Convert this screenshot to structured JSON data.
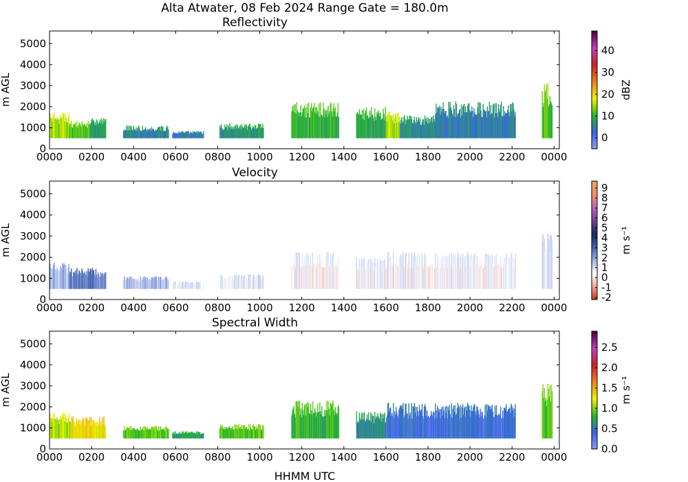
{
  "figure": {
    "suptitle": "Alta Atwater, 08 Feb 2024 Range Gate = 180.0m",
    "xlabel": "HHMM UTC"
  },
  "chart_data": [
    {
      "type": "heatmap",
      "title": "Reflectivity",
      "ylabel": "m AGL",
      "xlabel": "",
      "xlim": [
        0,
        1455
      ],
      "ylim": [
        0,
        5600
      ],
      "x_ticks": [
        0,
        120,
        240,
        360,
        480,
        600,
        720,
        840,
        960,
        1080,
        1200,
        1320,
        1440
      ],
      "x_tick_labels": [
        "0000",
        "0200",
        "0400",
        "0600",
        "0800",
        "1000",
        "1200",
        "1400",
        "1600",
        "1800",
        "2000",
        "2200",
        "0000"
      ],
      "y_ticks": [
        0,
        1000,
        2000,
        3000,
        4000,
        5000
      ],
      "y_tick_labels": [
        "0",
        "1000",
        "2000",
        "3000",
        "4000",
        "5000"
      ],
      "colorbar": {
        "label": "dBZ",
        "range": [
          -5,
          49
        ],
        "ticks": [
          0,
          10,
          20,
          30,
          40
        ],
        "tick_labels": [
          "0",
          "10",
          "20",
          "30",
          "40"
        ],
        "colors": [
          "#8ca0ee",
          "#3a62e8",
          "#22bb22",
          "#f4f000",
          "#f08020",
          "#d02020",
          "#c040c0",
          "#500040"
        ]
      },
      "echoes": [
        {
          "t0": 0,
          "t1": 55,
          "top": 1750,
          "value": 15
        },
        {
          "t0": 55,
          "t1": 115,
          "top": 1350,
          "value": 12
        },
        {
          "t0": 115,
          "t1": 160,
          "top": 1550,
          "value": 8
        },
        {
          "t0": 210,
          "t1": 340,
          "top": 1100,
          "value": 6
        },
        {
          "t0": 350,
          "t1": 440,
          "top": 850,
          "value": 4
        },
        {
          "t0": 485,
          "t1": 610,
          "top": 1200,
          "value": 7
        },
        {
          "t0": 690,
          "t1": 825,
          "top": 2250,
          "value": 10
        },
        {
          "t0": 875,
          "t1": 960,
          "top": 2000,
          "value": 9
        },
        {
          "t0": 960,
          "t1": 1000,
          "top": 1800,
          "value": 15
        },
        {
          "t0": 1000,
          "t1": 1100,
          "top": 1600,
          "value": 6
        },
        {
          "t0": 1100,
          "t1": 1330,
          "top": 2250,
          "value": 5
        },
        {
          "t0": 1405,
          "t1": 1435,
          "top": 3200,
          "value": 12
        }
      ]
    },
    {
      "type": "heatmap",
      "title": "Velocity",
      "ylabel": "m AGL",
      "xlabel": "",
      "xlim": [
        0,
        1455
      ],
      "ylim": [
        0,
        5600
      ],
      "x_ticks": [
        0,
        120,
        240,
        360,
        480,
        600,
        720,
        840,
        960,
        1080,
        1200,
        1320,
        1440
      ],
      "x_tick_labels": [
        "0000",
        "0200",
        "0400",
        "0600",
        "0800",
        "1000",
        "1200",
        "1400",
        "1600",
        "1800",
        "2000",
        "2200",
        "0000"
      ],
      "y_ticks": [
        0,
        1000,
        2000,
        3000,
        4000,
        5000
      ],
      "y_tick_labels": [
        "0",
        "1000",
        "2000",
        "3000",
        "4000",
        "5000"
      ],
      "colorbar": {
        "label": "m s⁻¹",
        "range": [
          -2.2,
          9.7
        ],
        "ticks": [
          -2,
          -1,
          0,
          1,
          2,
          3,
          4,
          5,
          6,
          7,
          8,
          9
        ],
        "tick_labels": [
          "-2",
          "-1",
          "0",
          "1",
          "2",
          "3",
          "4",
          "5",
          "6",
          "7",
          "8",
          "9"
        ],
        "colors": [
          "#d03020",
          "#f0a090",
          "#ffffff",
          "#a0b4e8",
          "#4060b0",
          "#1a2a60",
          "#7040a0",
          "#c060c0",
          "#f09060",
          "#f0a060"
        ]
      },
      "echoes": [
        {
          "t0": 0,
          "t1": 55,
          "top": 1750,
          "value": 1.6
        },
        {
          "t0": 55,
          "t1": 160,
          "top": 1500,
          "value": 2.6
        },
        {
          "t0": 210,
          "t1": 340,
          "top": 1100,
          "value": 1.5
        },
        {
          "t0": 350,
          "t1": 440,
          "top": 850,
          "value": 0.8
        },
        {
          "t0": 485,
          "t1": 610,
          "top": 1200,
          "value": 0.7
        },
        {
          "t0": 690,
          "t1": 825,
          "top": 2250,
          "value": 0.4
        },
        {
          "t0": 875,
          "t1": 960,
          "top": 2000,
          "value": 0.6
        },
        {
          "t0": 960,
          "t1": 1330,
          "top": 2250,
          "value": 0.5
        },
        {
          "t0": 1405,
          "t1": 1435,
          "top": 3200,
          "value": 0.9
        }
      ]
    },
    {
      "type": "heatmap",
      "title": "Spectral Width",
      "ylabel": "m AGL",
      "xlabel": "HHMM UTC",
      "xlim": [
        0,
        1455
      ],
      "ylim": [
        0,
        5600
      ],
      "x_ticks": [
        0,
        120,
        240,
        360,
        480,
        600,
        720,
        840,
        960,
        1080,
        1200,
        1320,
        1440
      ],
      "x_tick_labels": [
        "0000",
        "0200",
        "0400",
        "0600",
        "0800",
        "1000",
        "1200",
        "1400",
        "1600",
        "1800",
        "2000",
        "2200",
        "0000"
      ],
      "y_ticks": [
        0,
        1000,
        2000,
        3000,
        4000,
        5000
      ],
      "y_tick_labels": [
        "0",
        "1000",
        "2000",
        "3000",
        "4000",
        "5000"
      ],
      "colorbar": {
        "label": "m s⁻¹",
        "range": [
          0,
          2.9
        ],
        "ticks": [
          0,
          0.5,
          1,
          1.5,
          2,
          2.5
        ],
        "tick_labels": [
          "0.0",
          "0.5",
          "1.0",
          "1.5",
          "2.0",
          "2.5"
        ],
        "colors": [
          "#8ca0ee",
          "#3a62e8",
          "#22bb22",
          "#f4f000",
          "#f08020",
          "#d02020",
          "#c040c0",
          "#500040"
        ]
      },
      "echoes": [
        {
          "t0": 0,
          "t1": 60,
          "top": 1750,
          "value": 1.1
        },
        {
          "t0": 60,
          "t1": 160,
          "top": 1550,
          "value": 1.3
        },
        {
          "t0": 210,
          "t1": 340,
          "top": 1100,
          "value": 0.9
        },
        {
          "t0": 350,
          "t1": 440,
          "top": 850,
          "value": 0.7
        },
        {
          "t0": 485,
          "t1": 610,
          "top": 1200,
          "value": 0.9
        },
        {
          "t0": 690,
          "t1": 825,
          "top": 2300,
          "value": 0.8
        },
        {
          "t0": 875,
          "t1": 960,
          "top": 1800,
          "value": 0.6
        },
        {
          "t0": 960,
          "t1": 1330,
          "top": 2200,
          "value": 0.4
        },
        {
          "t0": 1405,
          "t1": 1435,
          "top": 3200,
          "value": 0.9
        }
      ]
    }
  ]
}
